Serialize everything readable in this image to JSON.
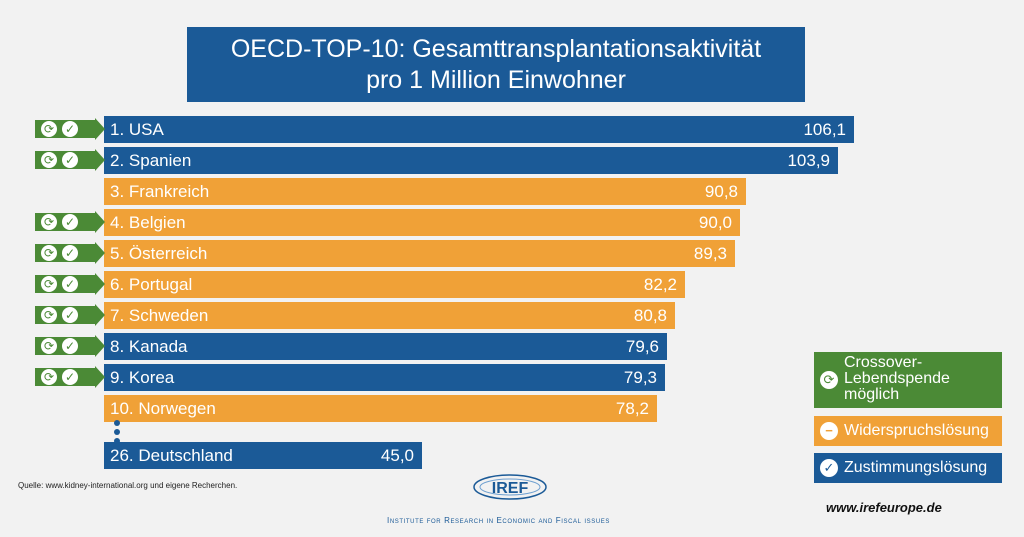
{
  "chart_data": {
    "type": "bar",
    "orientation": "horizontal",
    "title": "OECD-TOP-10: Gesamttransplantationsaktivität pro 1 Million Einwohner",
    "title_lines": [
      "OECD-TOP-10: Gesamttransplantationsaktivität",
      "pro 1 Million Einwohner"
    ],
    "categories": [
      "1. USA",
      "2. Spanien",
      "3. Frankreich",
      "4. Belgien",
      "5. Österreich",
      "6. Portugal",
      "7. Schweden",
      "8. Kanada",
      "9. Korea",
      "10. Norwegen",
      "26. Deutschland"
    ],
    "values": [
      106.1,
      103.9,
      90.8,
      90.0,
      89.3,
      82.2,
      80.8,
      79.6,
      79.3,
      78.2,
      45.0
    ],
    "value_labels": [
      "106,1",
      "103,9",
      "90,8",
      "90,0",
      "89,3",
      "82,2",
      "80,8",
      "79,6",
      "79,3",
      "78,2",
      "45,0"
    ],
    "system": [
      "zustimmung",
      "zustimmung",
      "widerspruch",
      "widerspruch",
      "widerspruch",
      "widerspruch",
      "widerspruch",
      "zustimmung",
      "zustimmung",
      "widerspruch",
      "zustimmung"
    ],
    "crossover": [
      true,
      true,
      false,
      true,
      true,
      true,
      true,
      true,
      true,
      false,
      false
    ],
    "legend_position": "right",
    "grid": false,
    "xlim": [
      0,
      106.1
    ]
  },
  "legend": {
    "crossover": "Crossover-Lebendspende möglich",
    "crossover_lines": [
      "Crossover-",
      "Lebendspende",
      "möglich"
    ],
    "widerspruch": "Widerspruchslösung",
    "zustimmung": "Zustimmungslösung"
  },
  "colors": {
    "zustimmung": "#1b5a97",
    "widerspruch": "#f0a137",
    "crossover": "#4b8a36",
    "title_bg": "#1b5a97",
    "background": "#f2f2f2"
  },
  "icons": {
    "crossover": "refresh-icon",
    "widerspruch": "minus-circle-icon",
    "zustimmung": "check-circle-icon"
  },
  "footer": {
    "source": "Quelle: www.kidney-international.org und eigene Recherchen.",
    "logo": "IREF",
    "institute": "Institute for Research in Economic and Fiscal issues",
    "url": "www.irefeurope.de"
  }
}
